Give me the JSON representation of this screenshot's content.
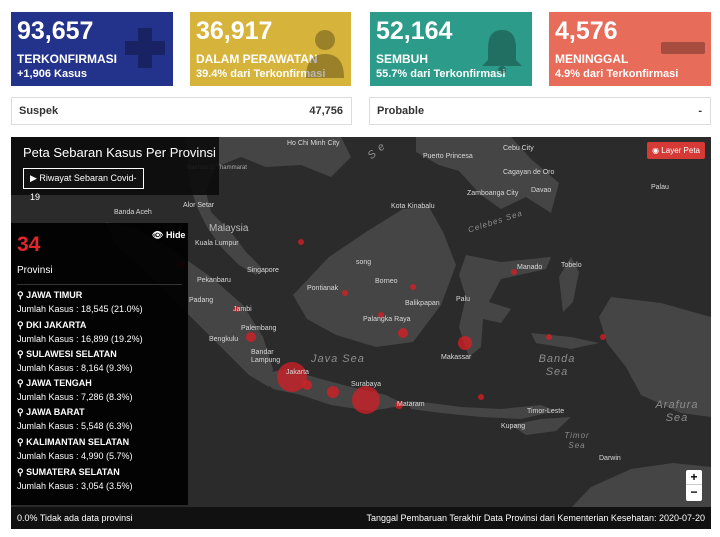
{
  "stats": {
    "confirmed": {
      "number": "93,657",
      "label": "TERKONFIRMASI",
      "sub": "+1,906 Kasus",
      "icon": "plus-icon",
      "color": "#23328a"
    },
    "treated": {
      "number": "36,917",
      "label": "DALAM PERAWATAN",
      "sub": "39.4% dari Terkonfirmasi",
      "icon": "patient-icon",
      "color": "#d6b33a"
    },
    "recovered": {
      "number": "52,164",
      "label": "SEMBUH",
      "sub": "55.7% dari Terkonfirmasi",
      "icon": "bell-icon",
      "color": "#2d9b89"
    },
    "death": {
      "number": "4,576",
      "label": "MENINGGAL",
      "sub": "4.9% dari Terkonfirmasi",
      "icon": "minus-icon",
      "color": "#e86c5a"
    }
  },
  "secondary": {
    "suspek": {
      "label": "Suspek",
      "value": "47,756"
    },
    "probable": {
      "label": "Probable",
      "value": "-"
    }
  },
  "map": {
    "title": "Peta Sebaran Kasus Per Provinsi",
    "history_button": "Riwayat Sebaran Covid-19",
    "layer_button": "Layer Peta",
    "hide_button": "Hide",
    "province_count": "34",
    "province_label": "Provinsi",
    "provinces": [
      {
        "name": "JAWA TIMUR",
        "cases": "Jumlah Kasus : 18,545 (21.0%)"
      },
      {
        "name": "DKI JAKARTA",
        "cases": "Jumlah Kasus : 16,899 (19.2%)"
      },
      {
        "name": "SULAWESI SELATAN",
        "cases": "Jumlah Kasus : 8,164 (9.3%)"
      },
      {
        "name": "JAWA TENGAH",
        "cases": "Jumlah Kasus : 7,286 (8.3%)"
      },
      {
        "name": "JAWA BARAT",
        "cases": "Jumlah Kasus : 5,548 (6.3%)"
      },
      {
        "name": "KALIMANTAN SELATAN",
        "cases": "Jumlah Kasus : 4,990 (5.7%)"
      },
      {
        "name": "SUMATERA SELATAN",
        "cases": "Jumlah Kasus : 3,054 (3.5%)"
      }
    ],
    "footer_left": "0.0% Tidak ada data provinsi",
    "footer_right": "Tanggal Pembaruan Terakhir Data Provinsi dari Kementerian Kesehatan: 2020-07-20",
    "zoom_in": "+",
    "zoom_out": "−",
    "place_labels": {
      "ho_chi_minh": "Ho Chi Minh City",
      "nakhon": "Nakhon Si Thammarat",
      "banda_aceh": "Banda Aceh",
      "alor_setar": "Alor Setar",
      "malaysia": "Malaysia",
      "kuala_lumpur": "Kuala Lumpur",
      "singapore": "Singapore",
      "pekanbaru": "Pekanbaru",
      "padang": "Padang",
      "jambi": "Jambi",
      "palembang": "Palembang",
      "bengkulu": "Bengkulu",
      "bandar_lampung": "Bandar Lampung",
      "jakarta": "Jakarta",
      "puerto_princesa": "Puerto Princesa",
      "cebu": "Cebu City",
      "cagayan": "Cagayan de Oro",
      "zamboanga": "Zamboanga City",
      "davao": "Davao",
      "palau": "Palau",
      "kota_kinabalu": "Kota Kinabalu",
      "celebes_sea": "Celebes Sea",
      "song": "song",
      "borneo": "Borneo",
      "pontianak": "Pontianak",
      "palangka_raya": "Palangka Raya",
      "balikpapan": "Balikpapan",
      "palu": "Palu",
      "manado": "Manado",
      "tobelo": "Tobelo",
      "makassar": "Makassar",
      "surabaya": "Surabaya",
      "mataram": "Mataram",
      "timor_leste": "Timor-Leste",
      "kupang": "Kupang",
      "darwin": "Darwin"
    },
    "sea_labels": {
      "java_sea": "Java Sea",
      "banda_sea": "Banda Sea",
      "arafura_sea": "Arafura Sea",
      "timor_sea": "Timor Sea",
      "sea_partial": "S e"
    }
  }
}
